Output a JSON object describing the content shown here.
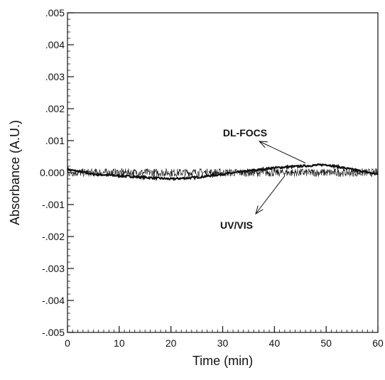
{
  "chart_data": {
    "type": "line",
    "title": "",
    "xlabel": "Time (min)",
    "ylabel": "Absorbance (A.U.)",
    "xlim": [
      0,
      60
    ],
    "ylim": [
      -0.005,
      0.005
    ],
    "x_ticks": [
      0,
      10,
      20,
      30,
      40,
      50,
      60
    ],
    "x_tick_labels": [
      "0",
      "10",
      "20",
      "30",
      "40",
      "50",
      "60"
    ],
    "y_ticks": [
      0.005,
      0.004,
      0.003,
      0.002,
      0.001,
      0.0,
      -0.001,
      -0.002,
      -0.003,
      -0.004,
      -0.005
    ],
    "y_tick_labels": [
      ".005",
      ".004",
      ".003",
      ".002",
      ".001",
      "0.000",
      "-.001",
      "-.002",
      "-.003",
      "-.004",
      "-.005"
    ],
    "grid": false,
    "legend": "none",
    "series": [
      {
        "name": "DL-FOCS",
        "style": "thick",
        "x": [
          0,
          5,
          10,
          15,
          20,
          25,
          30,
          35,
          40,
          45,
          50,
          55,
          60
        ],
        "y": [
          0.0001,
          -5e-05,
          -0.0001,
          -0.00015,
          -0.0002,
          -0.00015,
          -5e-05,
          5e-05,
          0.00015,
          0.0002,
          0.00025,
          0.0001,
          -5e-05
        ]
      },
      {
        "name": "UV/VIS",
        "style": "thin-noisy",
        "x": [
          0,
          5,
          10,
          15,
          20,
          25,
          30,
          35,
          40,
          45,
          50,
          55,
          60
        ],
        "y": [
          0.0,
          0.0,
          0.0,
          0.0,
          0.0,
          0.0,
          0.0,
          0.0,
          0.0,
          0.0,
          0.0,
          0.0,
          0.0
        ]
      }
    ],
    "annotations": [
      {
        "text": "DL-FOCS",
        "target_series": "DL-FOCS",
        "arrow_x": 46,
        "arrow_y": 0.0003
      },
      {
        "text": "UV/VIS",
        "target_series": "UV/VIS",
        "arrow_x": 42,
        "arrow_y": -0.0001
      }
    ]
  }
}
